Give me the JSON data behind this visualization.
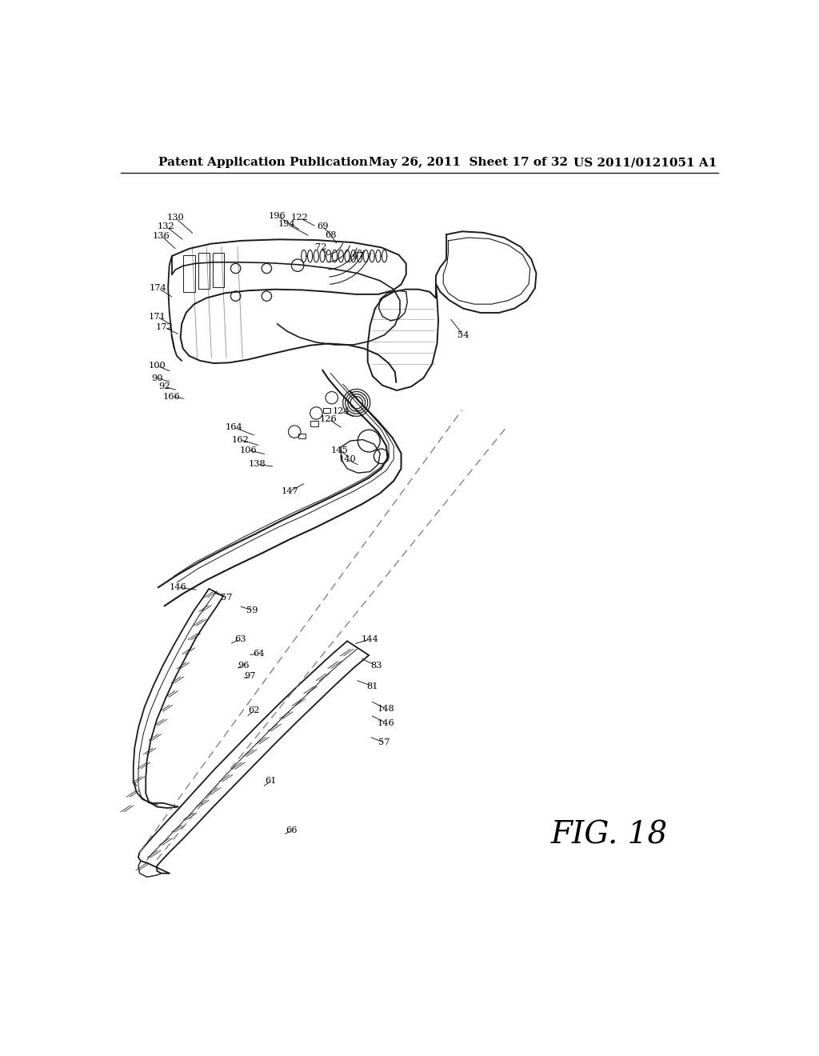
{
  "bg_color": "#ffffff",
  "header_left": "Patent Application Publication",
  "header_center": "May 26, 2011  Sheet 17 of 32",
  "header_right": "US 2011/0121051 A1",
  "fig_label": "FIG. 18",
  "header_fontsize": 11,
  "fig_label_fontsize": 28,
  "line_color": "#1a1a1a",
  "text_color": "#000000",
  "circles_shaft": [
    [
      370,
      440,
      10
    ],
    [
      345,
      465,
      10
    ],
    [
      310,
      495,
      10
    ]
  ],
  "circles_knob": [
    [
      410,
      448,
      22
    ],
    [
      410,
      448,
      18
    ],
    [
      410,
      448,
      14
    ],
    [
      410,
      448,
      10
    ]
  ],
  "circles_joint": [
    [
      430,
      510,
      18
    ],
    [
      450,
      535,
      12
    ]
  ],
  "circles_bolts": [
    [
      215,
      230,
      8
    ],
    [
      265,
      230,
      8
    ],
    [
      315,
      225,
      10
    ],
    [
      215,
      275,
      8
    ],
    [
      265,
      275,
      8
    ]
  ]
}
